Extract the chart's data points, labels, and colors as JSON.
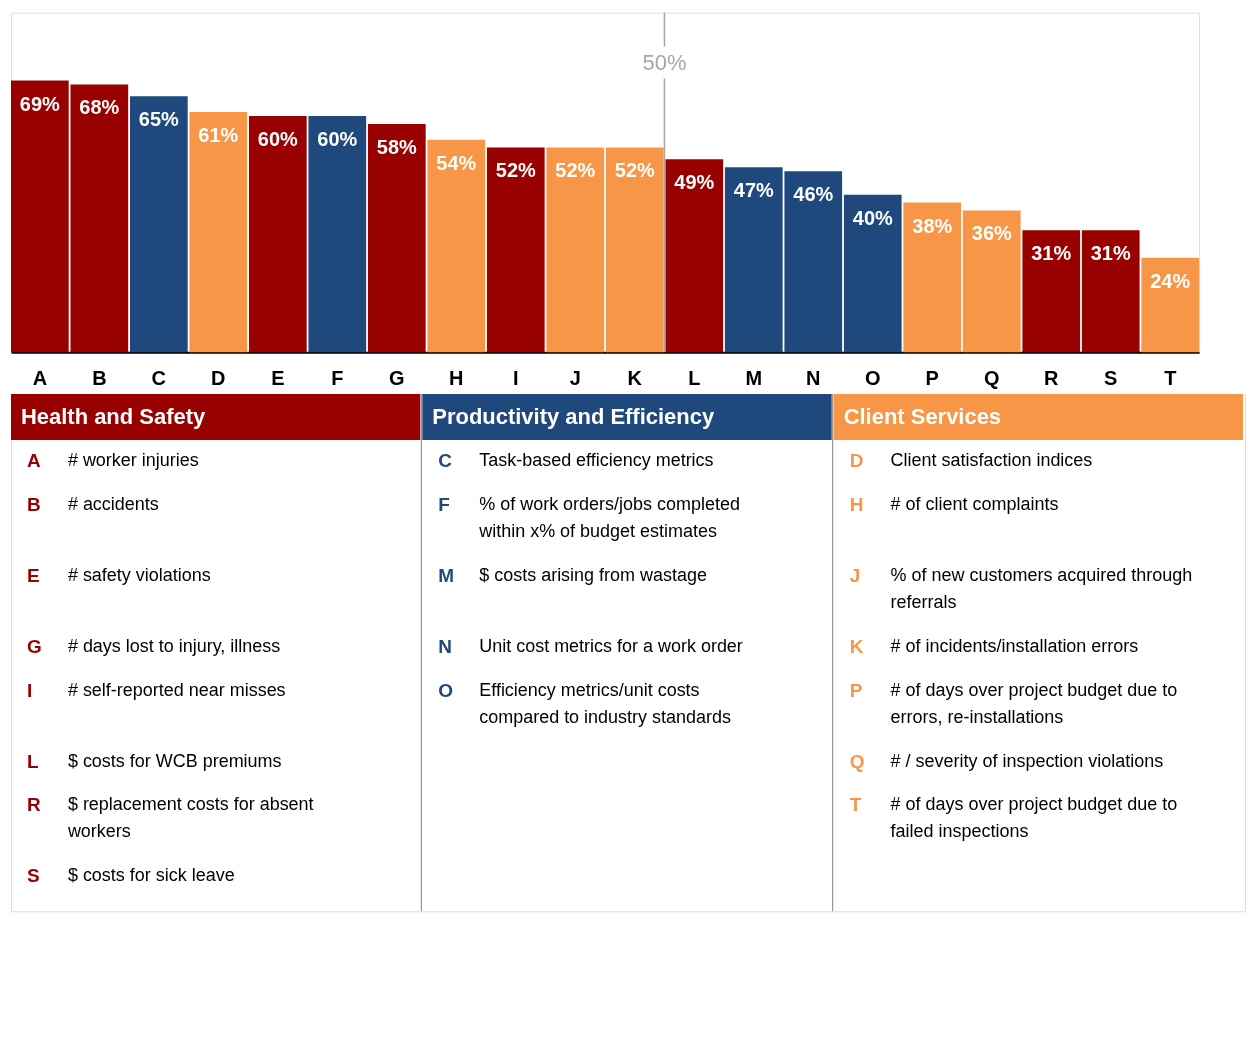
{
  "chart_data": {
    "type": "bar",
    "categories": [
      "A",
      "B",
      "C",
      "D",
      "E",
      "F",
      "G",
      "H",
      "I",
      "J",
      "K",
      "L",
      "M",
      "N",
      "O",
      "P",
      "Q",
      "R",
      "S",
      "T"
    ],
    "series": [
      {
        "name": "Health and Safety",
        "color": "#990000",
        "values": [
          69,
          68,
          null,
          null,
          60,
          null,
          58,
          null,
          52,
          null,
          null,
          49,
          null,
          null,
          null,
          null,
          null,
          31,
          31,
          null
        ],
        "value_labels": [
          "69%",
          "68%",
          null,
          null,
          "60%",
          null,
          "58%",
          null,
          "52%",
          null,
          null,
          "49%",
          null,
          null,
          null,
          null,
          null,
          "31%",
          "31%",
          null
        ]
      },
      {
        "name": "Productivity and Efficiency",
        "color": "#1f497d",
        "values": [
          null,
          null,
          65,
          null,
          null,
          60,
          null,
          null,
          null,
          null,
          null,
          null,
          47,
          46,
          40,
          null,
          null,
          null,
          null,
          null
        ],
        "value_labels": [
          null,
          null,
          "65%",
          null,
          null,
          "60%",
          null,
          null,
          null,
          null,
          null,
          null,
          "47%",
          "46%",
          "40%",
          null,
          null,
          null,
          null,
          null
        ]
      },
      {
        "name": "Client Services",
        "color": "#f79646",
        "values": [
          null,
          null,
          null,
          61,
          null,
          null,
          null,
          54,
          null,
          52,
          52,
          null,
          null,
          null,
          null,
          38,
          36,
          null,
          null,
          24
        ],
        "value_labels": [
          null,
          null,
          null,
          "61%",
          null,
          null,
          null,
          "54%",
          null,
          "52%",
          "52%",
          null,
          null,
          null,
          null,
          "38%",
          "36%",
          null,
          null,
          "24%"
        ]
      }
    ],
    "ref_lines": [
      {
        "axis": "x",
        "value": "K",
        "label": "50%",
        "color": "#a6a6a6"
      }
    ],
    "legend": "bottom",
    "annotations": [
      "# worker injuries",
      "# accidents",
      "Task-based efficiency metrics",
      "Client satisfaction indices",
      "# safety violations",
      "% of work orders/jobs completed within x% of budget estimates",
      "# days lost to injury, illness",
      "# of client complaints",
      "# self-reported near misses",
      "% of new customers acquired through referrals",
      "# of incidents/installation errors",
      "$ costs for WCB premiums",
      "$ costs arising from wastage",
      "Unit cost metrics for a work order",
      "Efficiency metrics/unit costs compared to industry standards",
      "# of days over project budget due to errors, re-installations",
      "# / severity of inspection violations",
      "$ replacement costs for absent workers",
      "$ costs for sick leave",
      "# of days over project budget due to failed inspections"
    ]
  }
}
